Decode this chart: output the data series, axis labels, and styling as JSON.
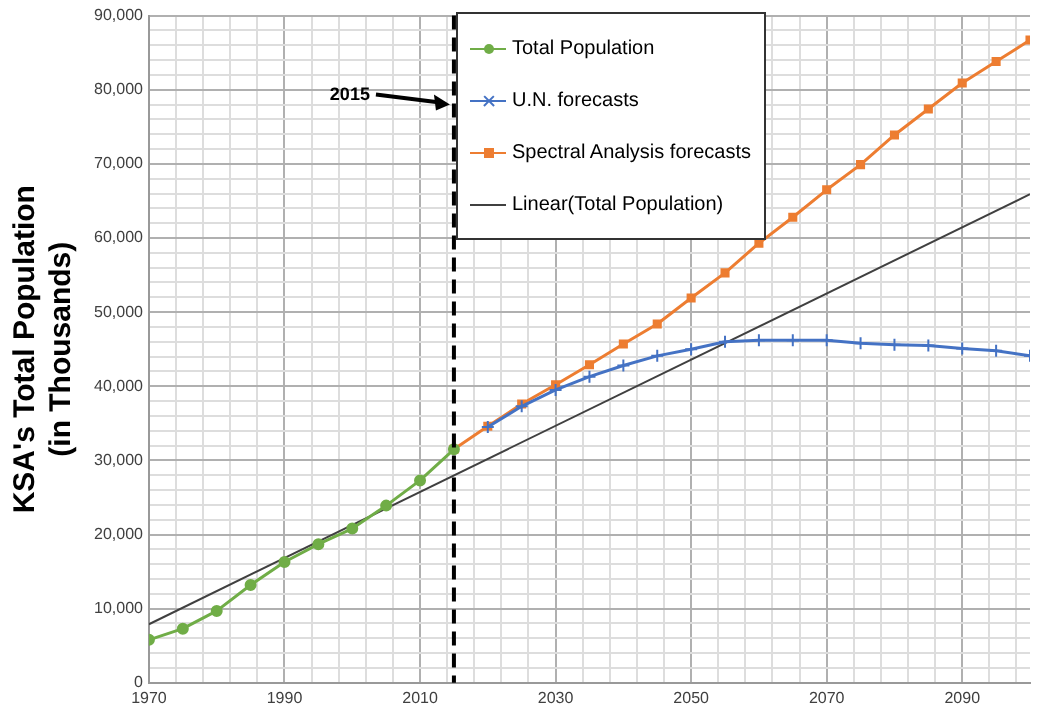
{
  "chart_data": {
    "type": "line",
    "ylabel": "KSA's Total Population\n(in Thousands)",
    "xlim": [
      1970,
      2100
    ],
    "xticks": [
      1970,
      {
        "value": 1974,
        "label": null
      },
      {
        "value": 1978,
        "label": null
      },
      {
        "value": 1982,
        "label": null
      },
      {
        "value": 1986,
        "label": null
      },
      1990,
      {
        "value": 1994,
        "label": null
      },
      {
        "value": 1998,
        "label": null
      },
      {
        "value": 2002,
        "label": null
      },
      {
        "value": 2006,
        "label": null
      },
      2010,
      {
        "value": 2014,
        "label": null
      },
      {
        "value": 2018,
        "label": null
      },
      {
        "value": 2022,
        "label": null
      },
      {
        "value": 2026,
        "label": null
      },
      2030,
      {
        "value": 2034,
        "label": null
      },
      {
        "value": 2038,
        "label": null
      },
      {
        "value": 2042,
        "label": null
      },
      {
        "value": 2046,
        "label": null
      },
      2050,
      {
        "value": 2054,
        "label": null
      },
      {
        "value": 2058,
        "label": null
      },
      {
        "value": 2062,
        "label": null
      },
      {
        "value": 2066,
        "label": null
      },
      2070,
      {
        "value": 2074,
        "label": null
      },
      {
        "value": 2078,
        "label": null
      },
      {
        "value": 2082,
        "label": null
      },
      {
        "value": 2086,
        "label": null
      },
      2090,
      {
        "value": 2094,
        "label": null
      },
      {
        "value": 2098,
        "label": null
      }
    ],
    "ylim": [
      0,
      90000
    ],
    "yticks": [
      0,
      {
        "value": 2000,
        "label": null
      },
      {
        "value": 4000,
        "label": null
      },
      {
        "value": 6000,
        "label": null
      },
      {
        "value": 8000,
        "label": null
      },
      {
        "value": 10000,
        "label": "10,000"
      },
      {
        "value": 12000,
        "label": null
      },
      {
        "value": 14000,
        "label": null
      },
      {
        "value": 16000,
        "label": null
      },
      {
        "value": 18000,
        "label": null
      },
      {
        "value": 20000,
        "label": "20,000"
      },
      {
        "value": 22000,
        "label": null
      },
      {
        "value": 24000,
        "label": null
      },
      {
        "value": 26000,
        "label": null
      },
      {
        "value": 28000,
        "label": null
      },
      {
        "value": 30000,
        "label": "30,000"
      },
      {
        "value": 32000,
        "label": null
      },
      {
        "value": 34000,
        "label": null
      },
      {
        "value": 36000,
        "label": null
      },
      {
        "value": 38000,
        "label": null
      },
      {
        "value": 40000,
        "label": "40,000"
      },
      {
        "value": 42000,
        "label": null
      },
      {
        "value": 44000,
        "label": null
      },
      {
        "value": 46000,
        "label": null
      },
      {
        "value": 48000,
        "label": null
      },
      {
        "value": 50000,
        "label": "50,000"
      },
      {
        "value": 52000,
        "label": null
      },
      {
        "value": 54000,
        "label": null
      },
      {
        "value": 56000,
        "label": null
      },
      {
        "value": 58000,
        "label": null
      },
      {
        "value": 60000,
        "label": "60,000"
      },
      {
        "value": 62000,
        "label": null
      },
      {
        "value": 64000,
        "label": null
      },
      {
        "value": 66000,
        "label": null
      },
      {
        "value": 68000,
        "label": null
      },
      {
        "value": 70000,
        "label": "70,000"
      },
      {
        "value": 72000,
        "label": null
      },
      {
        "value": 74000,
        "label": null
      },
      {
        "value": 76000,
        "label": null
      },
      {
        "value": 78000,
        "label": null
      },
      {
        "value": 80000,
        "label": "80,000"
      },
      {
        "value": 82000,
        "label": null
      },
      {
        "value": 84000,
        "label": null
      },
      {
        "value": 86000,
        "label": null
      },
      {
        "value": 88000,
        "label": null
      },
      {
        "value": 90000,
        "label": "90,000"
      }
    ],
    "grid": true,
    "legend": "top",
    "series": [
      {
        "name": "Total Population",
        "color": "#70ad47",
        "marker": "circle",
        "x": [
          1970,
          1975,
          1980,
          1985,
          1990,
          1995,
          2000,
          2005,
          2010,
          2015
        ],
        "values": [
          5800,
          7300,
          9700,
          13200,
          16300,
          18700,
          20800,
          23900,
          27300,
          31500
        ]
      },
      {
        "name": "U.N. forecasts",
        "color": "#4472c4",
        "marker": "cross",
        "x": [
          2020,
          2025,
          2030,
          2035,
          2040,
          2045,
          2050,
          2055,
          2060,
          2065,
          2070,
          2075,
          2080,
          2085,
          2090,
          2095,
          2100
        ],
        "values": [
          34500,
          37300,
          39500,
          41300,
          42800,
          44100,
          45000,
          46000,
          46200,
          46200,
          46200,
          45800,
          45600,
          45500,
          45100,
          44800,
          44100
        ]
      },
      {
        "name": "Spectral Analysis forecasts",
        "color": "#ed7d31",
        "marker": "square",
        "x": [
          2015,
          2020,
          2025,
          2030,
          2035,
          2040,
          2045,
          2050,
          2055,
          2060,
          2065,
          2070,
          2075,
          2080,
          2085,
          2090,
          2095,
          2100
        ],
        "values": [
          31500,
          34600,
          37600,
          40200,
          42900,
          45700,
          48400,
          51900,
          55300,
          59300,
          62800,
          66500,
          69900,
          73900,
          77400,
          80900,
          83800,
          86700
        ]
      },
      {
        "name": "Linear(Total Population)",
        "color": "#404040",
        "marker": "none",
        "x": [
          1970,
          2100
        ],
        "values": [
          7900,
          65900
        ]
      }
    ],
    "ref_lines": [
      {
        "axis": "x",
        "value": 2015,
        "color": "#000000",
        "line_style": "dashed"
      }
    ],
    "annotations": [
      {
        "text": "2015",
        "x": 2015,
        "y": 78000
      }
    ]
  }
}
